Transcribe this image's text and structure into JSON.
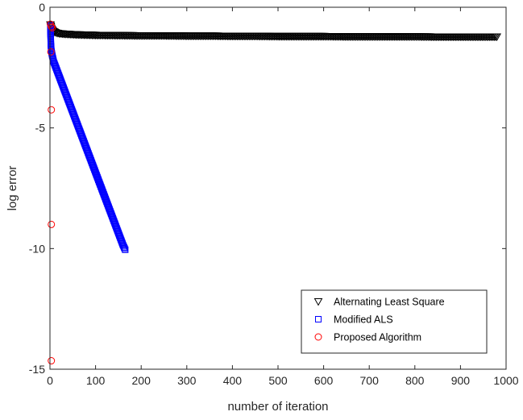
{
  "chart_data": {
    "type": "scatter",
    "title": "",
    "xlabel": "number of iteration",
    "ylabel": "log error",
    "xlim": [
      0,
      1000
    ],
    "ylim": [
      -15,
      0
    ],
    "xticks": [
      0,
      100,
      200,
      300,
      400,
      500,
      600,
      700,
      800,
      900,
      1000
    ],
    "yticks": [
      -15,
      -10,
      -5,
      0
    ],
    "grid": false,
    "legend_position": "bottom-right",
    "series": [
      {
        "name": "Alternating Least Square",
        "marker": "triangle-down",
        "color": "#000000",
        "x": [
          1,
          2,
          3,
          4,
          5,
          6,
          8,
          10,
          12,
          15,
          20,
          25,
          30,
          40,
          50,
          60,
          80,
          100,
          150,
          200,
          250,
          300,
          350,
          400,
          450,
          500,
          550,
          600,
          650,
          700,
          750,
          800,
          850,
          900,
          950,
          980
        ],
        "y": [
          -0.72,
          -0.8,
          -0.86,
          -0.9,
          -0.94,
          -0.97,
          -1.0,
          -1.02,
          -1.04,
          -1.06,
          -1.08,
          -1.09,
          -1.1,
          -1.11,
          -1.12,
          -1.13,
          -1.14,
          -1.15,
          -1.16,
          -1.17,
          -1.17,
          -1.18,
          -1.18,
          -1.19,
          -1.19,
          -1.2,
          -1.2,
          -1.2,
          -1.21,
          -1.21,
          -1.21,
          -1.21,
          -1.22,
          -1.22,
          -1.22,
          -1.22
        ]
      },
      {
        "name": "Modified ALS",
        "marker": "square",
        "color": "#0000ff",
        "x": [
          1,
          2,
          3,
          5,
          8,
          10,
          15,
          20,
          25,
          30,
          35,
          40,
          45,
          50,
          55,
          60,
          65,
          70,
          75,
          80,
          85,
          90,
          95,
          100,
          105,
          110,
          115,
          120,
          125,
          130,
          135,
          140,
          145,
          150,
          155,
          160,
          165
        ],
        "y": [
          -0.75,
          -1.55,
          -1.8,
          -2.0,
          -2.25,
          -2.35,
          -2.6,
          -2.85,
          -3.1,
          -3.35,
          -3.6,
          -3.85,
          -4.1,
          -4.35,
          -4.6,
          -4.85,
          -5.1,
          -5.35,
          -5.6,
          -5.85,
          -6.1,
          -6.35,
          -6.6,
          -6.85,
          -7.1,
          -7.35,
          -7.6,
          -7.85,
          -8.1,
          -8.35,
          -8.6,
          -8.85,
          -9.1,
          -9.35,
          -9.6,
          -9.85,
          -10.05
        ]
      },
      {
        "name": "Proposed Algorithm",
        "marker": "circle",
        "color": "#ff0000",
        "x": [
          1,
          3,
          5,
          2,
          3,
          3,
          3
        ],
        "y": [
          -0.7,
          -0.8,
          -0.85,
          -1.85,
          -4.25,
          -9.0,
          -14.65
        ]
      }
    ]
  }
}
